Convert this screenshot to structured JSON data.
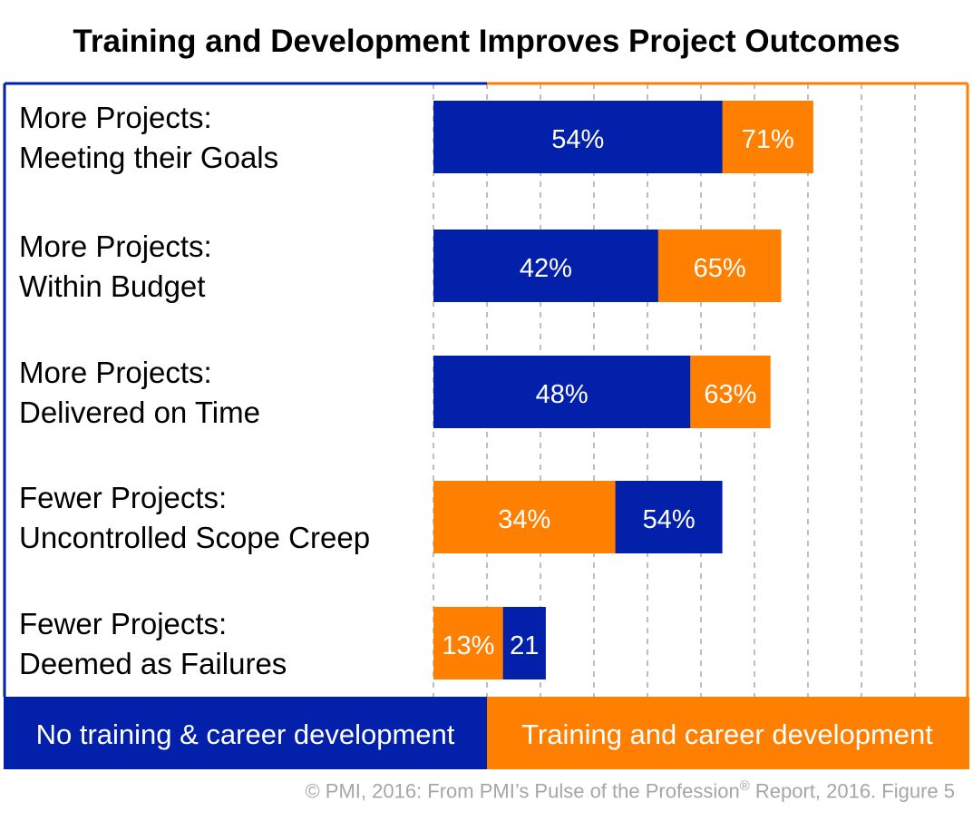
{
  "chart_data": {
    "type": "bar",
    "orientation": "horizontal",
    "title": "Training and Development Improves Project Outcomes",
    "categories": [
      [
        "More Projects:",
        "Meeting their Goals"
      ],
      [
        "More Projects:",
        "Within Budget"
      ],
      [
        "More Projects:",
        "Delivered on Time"
      ],
      [
        "Fewer Projects:",
        "Uncontrolled Scope Creep"
      ],
      [
        "Fewer Projects:",
        "Deemed as Failures"
      ]
    ],
    "series": [
      {
        "name": "No training & career development",
        "color": "#0220AA",
        "values": [
          54,
          42,
          48,
          54,
          21
        ],
        "labels": [
          "54%",
          "42%",
          "48%",
          "54%",
          "21"
        ]
      },
      {
        "name": "Training and career development",
        "color": "#FF7F00",
        "values": [
          71,
          65,
          63,
          34,
          13
        ],
        "labels": [
          "71%",
          "65%",
          "63%",
          "34%",
          "13%"
        ]
      }
    ],
    "xlim": [
      0,
      100
    ],
    "grid": true,
    "legend": "bottom"
  },
  "footer": {
    "text_before": "© PMI, 2016:  From PMI’s Pulse of the Profession",
    "registered_mark": "®",
    "text_after": " Report, 2016. Figure 5"
  }
}
